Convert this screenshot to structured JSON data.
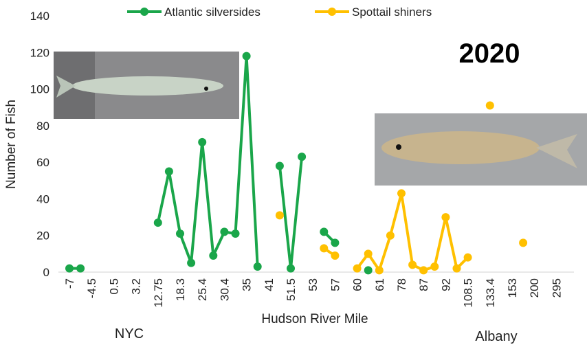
{
  "chart_data": {
    "type": "line",
    "annotations": [
      "2020",
      "NYC",
      "Albany"
    ],
    "x_label": "Hudson River Mile",
    "y_label": "Number of Fish",
    "categories": [
      "-7",
      null,
      "-4.5",
      null,
      "0.5",
      null,
      "3.2",
      null,
      "12.75",
      null,
      "18.3",
      null,
      "25.4",
      null,
      "30.4",
      null,
      "35",
      null,
      "41",
      null,
      "51.5",
      null,
      "53",
      null,
      "57",
      null,
      "60",
      null,
      "61",
      null,
      "78",
      null,
      "87",
      null,
      "92",
      null,
      "108.5",
      null,
      "133.4",
      null,
      "153",
      null,
      "200",
      null,
      "295"
    ],
    "series": [
      {
        "name": "Atlantic silversides",
        "color": "#1aa64a",
        "values": [
          2,
          2,
          null,
          null,
          null,
          null,
          null,
          null,
          27,
          55,
          21,
          5,
          71,
          9,
          22,
          21,
          118,
          3,
          null,
          58,
          2,
          63,
          null,
          22,
          16,
          null,
          null,
          1,
          null,
          null,
          null,
          null,
          null,
          null,
          null,
          null,
          null,
          null,
          null,
          null,
          null,
          null,
          null,
          null,
          null
        ]
      },
      {
        "name": "Spottail shiners",
        "color": "#ffc000",
        "values": [
          null,
          null,
          null,
          null,
          null,
          null,
          null,
          null,
          null,
          null,
          null,
          null,
          null,
          null,
          null,
          null,
          null,
          null,
          null,
          31,
          null,
          null,
          null,
          13,
          9,
          null,
          2,
          10,
          1,
          20,
          43,
          4,
          1,
          3,
          30,
          2,
          8,
          null,
          91,
          null,
          null,
          16,
          null,
          null,
          null
        ]
      }
    ],
    "ylim": [
      0,
      140
    ],
    "yticks": [
      0,
      20,
      40,
      60,
      80,
      100,
      120,
      140
    ],
    "grid": false
  }
}
